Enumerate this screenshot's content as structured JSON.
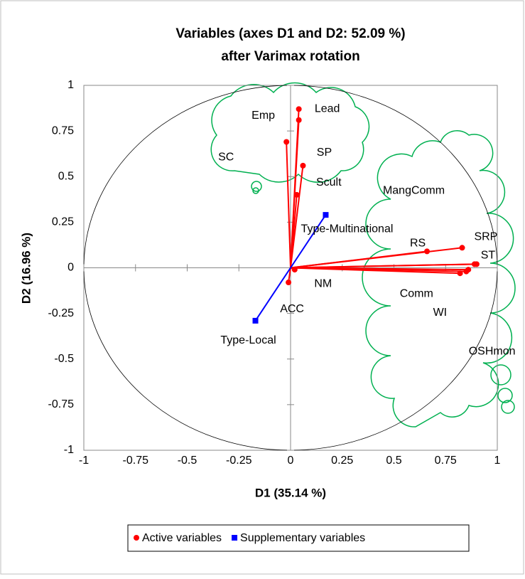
{
  "chart_data": {
    "type": "scatter",
    "title": [
      "Variables (axes D1 and D2: 52.09 %)",
      "after Varimax rotation"
    ],
    "xlabel": "D1 (35.14 %)",
    "ylabel": "D2 (16.96 %)",
    "xlim": [
      -1,
      1
    ],
    "ylim": [
      -1,
      1
    ],
    "xticks": [
      -1,
      -0.75,
      -0.5,
      -0.25,
      0,
      0.25,
      0.5,
      0.75,
      1
    ],
    "yticks": [
      -1,
      -0.75,
      -0.5,
      -0.25,
      0,
      0.25,
      0.5,
      0.75,
      1
    ],
    "series": [
      {
        "name": "Active variables",
        "color": "#ff0000",
        "marker": "circle",
        "labels": [
          "Lead",
          "Emp",
          "SC",
          "SP",
          "Scult",
          "MangComm",
          "RS",
          "SRP",
          "ST",
          "Comm",
          "WI",
          "OSHmon",
          "NM",
          "ACC"
        ],
        "x": [
          0.04,
          0.04,
          -0.02,
          0.06,
          0.03,
          0.83,
          0.66,
          0.9,
          0.89,
          0.86,
          0.85,
          0.82,
          0.02,
          -0.01
        ],
        "y": [
          0.87,
          0.81,
          0.69,
          0.56,
          0.4,
          0.11,
          0.09,
          0.02,
          0.02,
          -0.01,
          -0.02,
          -0.03,
          -0.01,
          -0.08
        ]
      },
      {
        "name": "Supplementary variables",
        "color": "#0000ff",
        "marker": "square",
        "labels": [
          "Type-Multinational",
          "Type-Local"
        ],
        "x": [
          0.17,
          -0.17
        ],
        "y": [
          0.29,
          -0.29
        ]
      }
    ]
  }
}
